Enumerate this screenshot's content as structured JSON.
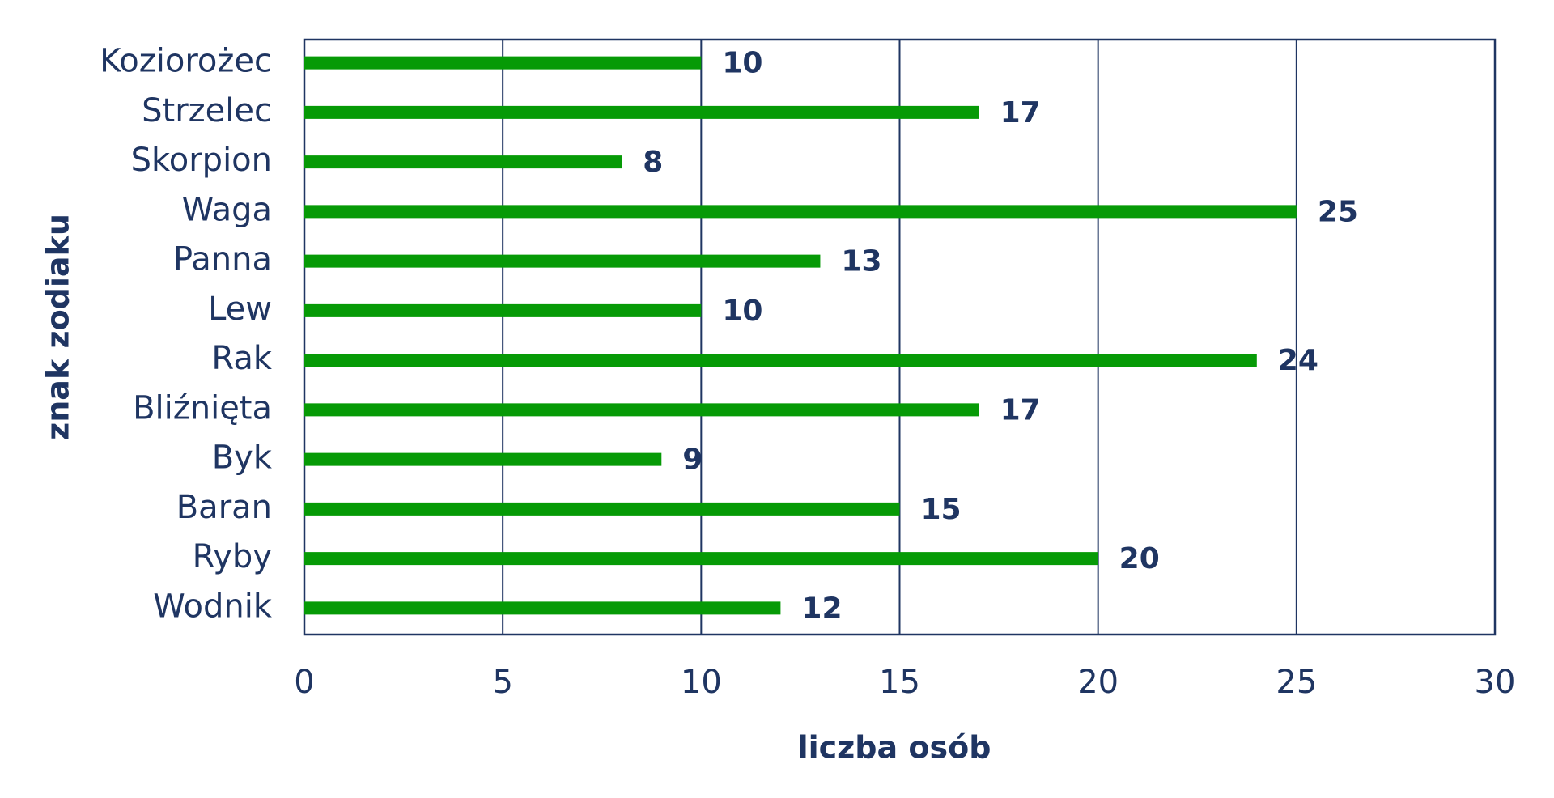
{
  "chart_data": {
    "type": "bar",
    "orientation": "horizontal",
    "categories": [
      "Koziorożec",
      "Strzelec",
      "Skorpion",
      "Waga",
      "Panna",
      "Lew",
      "Rak",
      "Bliźnięta",
      "Byk",
      "Baran",
      "Ryby",
      "Wodnik"
    ],
    "values": [
      10,
      17,
      8,
      25,
      13,
      10,
      24,
      17,
      9,
      15,
      20,
      12
    ],
    "color": "#069a06",
    "xlim": [
      0,
      30
    ],
    "xticks": [
      0,
      5,
      10,
      15,
      20,
      25,
      30
    ],
    "grid": true,
    "x_label": "liczba osób",
    "y_label": "znak zodiaku"
  }
}
